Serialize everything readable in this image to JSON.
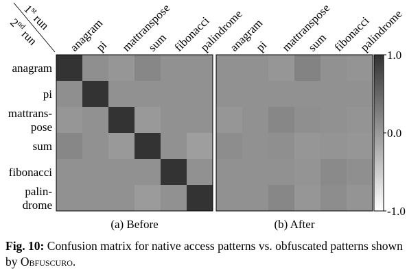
{
  "corner_labels": {
    "first": {
      "ordinal": "1",
      "suffix": "st",
      "word": "run"
    },
    "second": {
      "ordinal": "2",
      "suffix": "nd",
      "word": "run"
    }
  },
  "chart_data": [
    {
      "type": "heatmap",
      "subtitle": "(a) Before",
      "columns": [
        "anagram",
        "pi",
        "mattranspose",
        "sum",
        "fibonacci",
        "palindrome"
      ],
      "rows": [
        "anagram",
        "pi",
        "mattrans-\npose",
        "sum",
        "fibonacci",
        "palin-\ndrome"
      ],
      "values": [
        [
          1.0,
          0.1,
          0.03,
          0.18,
          0.08,
          0.08
        ],
        [
          0.1,
          1.0,
          0.08,
          0.08,
          0.08,
          0.08
        ],
        [
          0.03,
          0.08,
          1.0,
          0.0,
          0.08,
          0.08
        ],
        [
          0.18,
          0.08,
          0.0,
          1.0,
          0.08,
          -0.05
        ],
        [
          0.08,
          0.08,
          0.08,
          0.08,
          1.0,
          0.08
        ],
        [
          0.08,
          0.08,
          0.08,
          -0.02,
          0.08,
          1.0
        ]
      ]
    },
    {
      "type": "heatmap",
      "subtitle": "(b) After",
      "columns": [
        "anagram",
        "pi",
        "mattranspose",
        "sum",
        "fibonacci",
        "palindrome"
      ],
      "rows": [
        "anagram",
        "pi",
        "mattrans-\npose",
        "sum",
        "fibonacci",
        "palin-\ndrome"
      ],
      "values": [
        [
          0.08,
          0.08,
          0.03,
          0.22,
          0.08,
          0.05
        ],
        [
          0.08,
          0.08,
          0.08,
          0.08,
          0.08,
          0.08
        ],
        [
          0.03,
          0.08,
          0.18,
          0.1,
          0.08,
          0.05
        ],
        [
          0.12,
          0.08,
          0.1,
          0.03,
          0.05,
          0.03
        ],
        [
          0.08,
          0.08,
          0.08,
          0.05,
          0.15,
          0.1
        ],
        [
          0.08,
          0.08,
          0.18,
          0.03,
          0.12,
          0.05
        ]
      ]
    }
  ],
  "colorbar": {
    "range": [
      -1.0,
      1.0
    ],
    "ticks": [
      {
        "value": 1.0,
        "label": "1.0"
      },
      {
        "value": 0.0,
        "label": "0.0"
      },
      {
        "value": -1.0,
        "label": "-1.0"
      }
    ],
    "colors": {
      "low": "#ffffff",
      "high": "#333333"
    }
  },
  "caption": {
    "label": "Fig. 10:",
    "text": " Confusion matrix for native access patterns vs. obfuscated patterns shown by ",
    "system_name": "Obfuscuro",
    "end": "."
  }
}
